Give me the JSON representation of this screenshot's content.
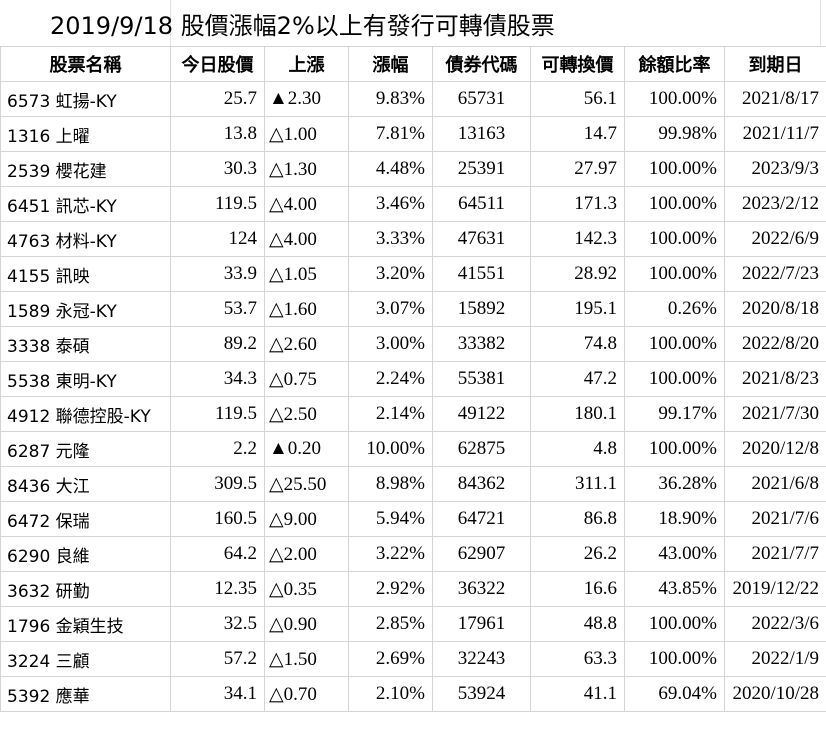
{
  "title": "2019/9/18  股價漲幅2%以上有發行可轉債股票",
  "headers": [
    "股票名稱",
    "今日股價",
    "上漲",
    "漲幅",
    "債券代碼",
    "可轉換價",
    "餘額比率",
    "到期日"
  ],
  "rows": [
    {
      "name": "6573 虹揚-KY",
      "price": "25.7",
      "change": "▲2.30",
      "pct": "9.83%",
      "code": "65731",
      "conv": "56.1",
      "ratio": "100.00%",
      "due": "2021/8/17"
    },
    {
      "name": "1316 上曜",
      "price": "13.8",
      "change": "△1.00",
      "pct": "7.81%",
      "code": "13163",
      "conv": "14.7",
      "ratio": "99.98%",
      "due": "2021/11/7"
    },
    {
      "name": "2539 櫻花建",
      "price": "30.3",
      "change": "△1.30",
      "pct": "4.48%",
      "code": "25391",
      "conv": "27.97",
      "ratio": "100.00%",
      "due": "2023/9/3"
    },
    {
      "name": "6451 訊芯-KY",
      "price": "119.5",
      "change": "△4.00",
      "pct": "3.46%",
      "code": "64511",
      "conv": "171.3",
      "ratio": "100.00%",
      "due": "2023/2/12"
    },
    {
      "name": "4763 材料-KY",
      "price": "124",
      "change": "△4.00",
      "pct": "3.33%",
      "code": "47631",
      "conv": "142.3",
      "ratio": "100.00%",
      "due": "2022/6/9"
    },
    {
      "name": "4155 訊映",
      "price": "33.9",
      "change": "△1.05",
      "pct": "3.20%",
      "code": "41551",
      "conv": "28.92",
      "ratio": "100.00%",
      "due": "2022/7/23"
    },
    {
      "name": "1589 永冠-KY",
      "price": "53.7",
      "change": "△1.60",
      "pct": "3.07%",
      "code": "15892",
      "conv": "195.1",
      "ratio": "0.26%",
      "due": "2020/8/18"
    },
    {
      "name": "3338 泰碩",
      "price": "89.2",
      "change": "△2.60",
      "pct": "3.00%",
      "code": "33382",
      "conv": "74.8",
      "ratio": "100.00%",
      "due": "2022/8/20"
    },
    {
      "name": "5538 東明-KY",
      "price": "34.3",
      "change": "△0.75",
      "pct": "2.24%",
      "code": "55381",
      "conv": "47.2",
      "ratio": "100.00%",
      "due": "2021/8/23"
    },
    {
      "name": "4912 聯德控股-KY",
      "price": "119.5",
      "change": "△2.50",
      "pct": "2.14%",
      "code": "49122",
      "conv": "180.1",
      "ratio": "99.17%",
      "due": "2021/7/30"
    },
    {
      "name": "6287 元隆",
      "price": "2.2",
      "change": "▲0.20",
      "pct": "10.00%",
      "code": "62875",
      "conv": "4.8",
      "ratio": "100.00%",
      "due": "2020/12/8"
    },
    {
      "name": "8436 大江",
      "price": "309.5",
      "change": "△25.50",
      "pct": "8.98%",
      "code": "84362",
      "conv": "311.1",
      "ratio": "36.28%",
      "due": "2021/6/8"
    },
    {
      "name": "6472 保瑞",
      "price": "160.5",
      "change": "△9.00",
      "pct": "5.94%",
      "code": "64721",
      "conv": "86.8",
      "ratio": "18.90%",
      "due": "2021/7/6"
    },
    {
      "name": "6290 良維",
      "price": "64.2",
      "change": "△2.00",
      "pct": "3.22%",
      "code": "62907",
      "conv": "26.2",
      "ratio": "43.00%",
      "due": "2021/7/7"
    },
    {
      "name": "3632 研勤",
      "price": "12.35",
      "change": "△0.35",
      "pct": "2.92%",
      "code": "36322",
      "conv": "16.6",
      "ratio": "43.85%",
      "due": "2019/12/22"
    },
    {
      "name": "1796 金穎生技",
      "price": "32.5",
      "change": "△0.90",
      "pct": "2.85%",
      "code": "17961",
      "conv": "48.8",
      "ratio": "100.00%",
      "due": "2022/3/6"
    },
    {
      "name": "3224 三顧",
      "price": "57.2",
      "change": "△1.50",
      "pct": "2.69%",
      "code": "32243",
      "conv": "63.3",
      "ratio": "100.00%",
      "due": "2022/1/9"
    },
    {
      "name": "5392 應華",
      "price": "34.1",
      "change": "△0.70",
      "pct": "2.10%",
      "code": "53924",
      "conv": "41.1",
      "ratio": "69.04%",
      "due": "2020/10/28"
    }
  ]
}
